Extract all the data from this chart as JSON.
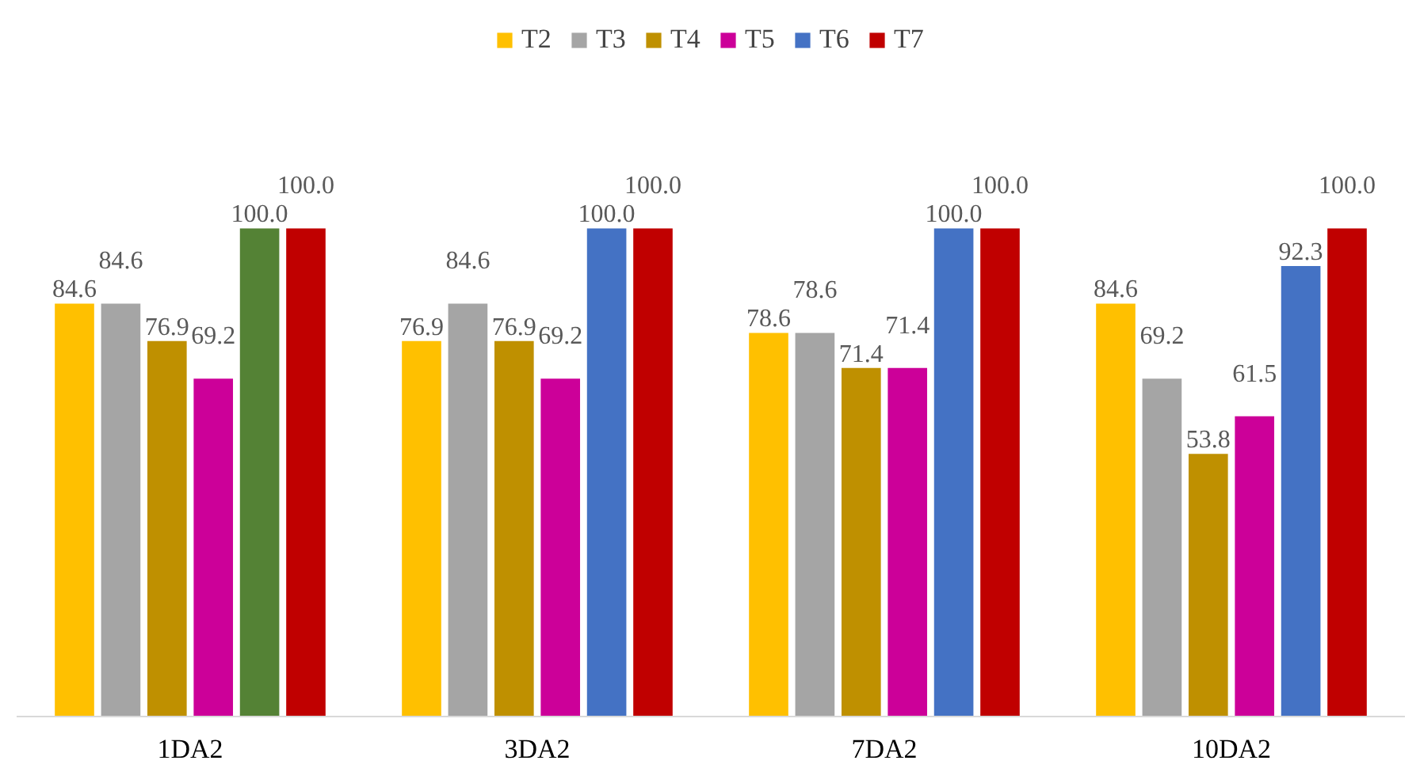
{
  "chart_data": {
    "type": "bar",
    "categories": [
      "1DA2",
      "3DA2",
      "7DA2",
      "10DA2"
    ],
    "series": [
      {
        "name": "T2",
        "color": "#ffc000",
        "values": [
          84.6,
          76.9,
          78.6,
          84.6
        ],
        "value_labels": [
          "84.6",
          "76.9",
          "78.6",
          "84.6"
        ]
      },
      {
        "name": "T3",
        "color": "#a5a5a5",
        "values": [
          84.6,
          84.6,
          78.6,
          69.2
        ],
        "value_labels": [
          "84.6",
          "84.6",
          "78.6",
          "69.2"
        ]
      },
      {
        "name": "T4",
        "color": "#bf9000",
        "values": [
          76.9,
          76.9,
          71.4,
          53.8
        ],
        "value_labels": [
          "76.9",
          "76.9",
          "71.4",
          "53.8"
        ]
      },
      {
        "name": "T5",
        "color": "#cc0099",
        "values": [
          69.2,
          69.2,
          71.4,
          61.5
        ],
        "value_labels": [
          "69.2",
          "69.2",
          "71.4",
          "61.5"
        ]
      },
      {
        "name": "T6",
        "color": "#4472c4",
        "colors": [
          "#548235",
          "#4472c4",
          "#4472c4",
          "#4472c4"
        ],
        "values": [
          100,
          100,
          100,
          92.3
        ],
        "value_labels": [
          "100.0",
          "100.0",
          "100.0",
          "92.3"
        ]
      },
      {
        "name": "T7",
        "color": "#c00000",
        "values": [
          100,
          100,
          100,
          100
        ],
        "value_labels": [
          "100.0",
          "100.0",
          "100.0",
          "100.0"
        ]
      }
    ],
    "legend": "top",
    "grid": false
  }
}
